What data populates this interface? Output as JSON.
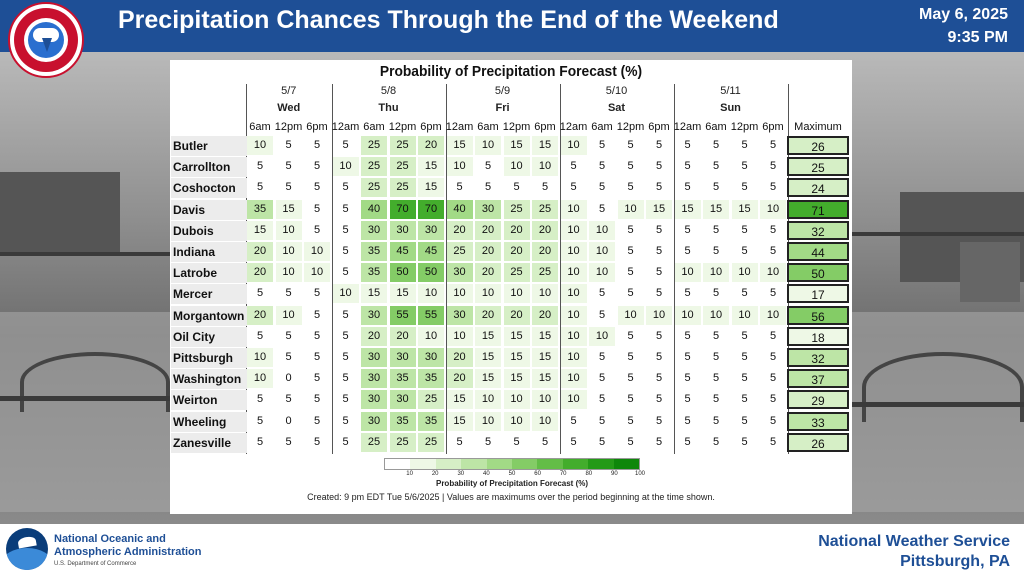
{
  "header": {
    "title": "Precipitation Chances Through the End of the Weekend",
    "date": "May 6, 2025",
    "time": "9:35 PM",
    "logo_text": "NATIONAL WEATHER SERVICE"
  },
  "panel": {
    "title": "Probability of Precipitation Forecast (%)",
    "max_header": "Maximum",
    "days": [
      {
        "date": "5/7",
        "day": "Wed"
      },
      {
        "date": "5/8",
        "day": "Thu"
      },
      {
        "date": "5/9",
        "day": "Fri"
      },
      {
        "date": "5/10",
        "day": "Sat"
      },
      {
        "date": "5/11",
        "day": "Sun"
      }
    ],
    "times": [
      "6am",
      "12pm",
      "6pm",
      "12am",
      "6am",
      "12pm",
      "6pm",
      "12am",
      "6am",
      "12pm",
      "6pm",
      "12am",
      "6am",
      "12pm",
      "6pm",
      "12am",
      "6am",
      "12pm",
      "6pm"
    ],
    "rows": [
      {
        "name": "Butler",
        "values": [
          10,
          5,
          5,
          5,
          25,
          25,
          20,
          15,
          10,
          15,
          15,
          10,
          5,
          5,
          5,
          5,
          5,
          5,
          5
        ],
        "max": 26
      },
      {
        "name": "Carrollton",
        "values": [
          5,
          5,
          5,
          10,
          25,
          25,
          15,
          10,
          5,
          10,
          10,
          5,
          5,
          5,
          5,
          5,
          5,
          5,
          5
        ],
        "max": 25
      },
      {
        "name": "Coshocton",
        "values": [
          5,
          5,
          5,
          5,
          25,
          25,
          15,
          5,
          5,
          5,
          5,
          5,
          5,
          5,
          5,
          5,
          5,
          5,
          5
        ],
        "max": 24
      },
      {
        "name": "Davis",
        "values": [
          35,
          15,
          5,
          5,
          40,
          70,
          70,
          40,
          30,
          25,
          25,
          10,
          5,
          10,
          15,
          15,
          15,
          15,
          10
        ],
        "max": 71
      },
      {
        "name": "Dubois",
        "values": [
          15,
          10,
          5,
          5,
          30,
          30,
          30,
          20,
          20,
          20,
          20,
          10,
          10,
          5,
          5,
          5,
          5,
          5,
          5
        ],
        "max": 32
      },
      {
        "name": "Indiana",
        "values": [
          20,
          10,
          10,
          5,
          35,
          45,
          45,
          25,
          20,
          20,
          20,
          10,
          10,
          5,
          5,
          5,
          5,
          5,
          5
        ],
        "max": 44
      },
      {
        "name": "Latrobe",
        "values": [
          20,
          10,
          10,
          5,
          35,
          50,
          50,
          30,
          20,
          25,
          25,
          10,
          10,
          5,
          5,
          10,
          10,
          10,
          10
        ],
        "max": 50
      },
      {
        "name": "Mercer",
        "values": [
          5,
          5,
          5,
          10,
          15,
          15,
          10,
          10,
          10,
          10,
          10,
          10,
          5,
          5,
          5,
          5,
          5,
          5,
          5
        ],
        "max": 17
      },
      {
        "name": "Morgantown",
        "values": [
          20,
          10,
          5,
          5,
          30,
          55,
          55,
          30,
          20,
          20,
          20,
          10,
          5,
          10,
          10,
          10,
          10,
          10,
          10
        ],
        "max": 56
      },
      {
        "name": "Oil City",
        "values": [
          5,
          5,
          5,
          5,
          20,
          20,
          10,
          10,
          15,
          15,
          15,
          10,
          10,
          5,
          5,
          5,
          5,
          5,
          5
        ],
        "max": 18
      },
      {
        "name": "Pittsburgh",
        "values": [
          10,
          5,
          5,
          5,
          30,
          30,
          30,
          20,
          15,
          15,
          15,
          10,
          5,
          5,
          5,
          5,
          5,
          5,
          5
        ],
        "max": 32
      },
      {
        "name": "Washington",
        "values": [
          10,
          0,
          5,
          5,
          30,
          35,
          35,
          20,
          15,
          15,
          15,
          10,
          5,
          5,
          5,
          5,
          5,
          5,
          5
        ],
        "max": 37
      },
      {
        "name": "Weirton",
        "values": [
          5,
          5,
          5,
          5,
          30,
          30,
          25,
          15,
          10,
          10,
          10,
          10,
          5,
          5,
          5,
          5,
          5,
          5,
          5
        ],
        "max": 29
      },
      {
        "name": "Wheeling",
        "values": [
          5,
          0,
          5,
          5,
          30,
          35,
          35,
          15,
          10,
          10,
          10,
          5,
          5,
          5,
          5,
          5,
          5,
          5,
          5
        ],
        "max": 33
      },
      {
        "name": "Zanesville",
        "values": [
          5,
          5,
          5,
          5,
          25,
          25,
          25,
          5,
          5,
          5,
          5,
          5,
          5,
          5,
          5,
          5,
          5,
          5,
          5
        ],
        "max": 26
      }
    ],
    "legend": {
      "ticks": [
        "10",
        "20",
        "30",
        "40",
        "50",
        "60",
        "70",
        "80",
        "90",
        "100"
      ],
      "title": "Probability of Precipitation Forecast (%)",
      "colors": [
        "#ffffff",
        "#eef8e6",
        "#d6efc6",
        "#bde5a6",
        "#a2da86",
        "#84cc66",
        "#63bd47",
        "#43ad2c",
        "#249a17",
        "#0e870a"
      ]
    },
    "created": "Created: 9 pm EDT Tue 5/6/2025  |  Values are maximums over the period beginning at the time shown."
  },
  "footer": {
    "noaa_line1": "National Oceanic and",
    "noaa_line2": "Atmospheric Administration",
    "noaa_sub": "U.S. Department of Commerce",
    "noaa_logo_text": "NOAA",
    "office_line1": "National Weather Service",
    "office_line2": "Pittsburgh, PA"
  }
}
